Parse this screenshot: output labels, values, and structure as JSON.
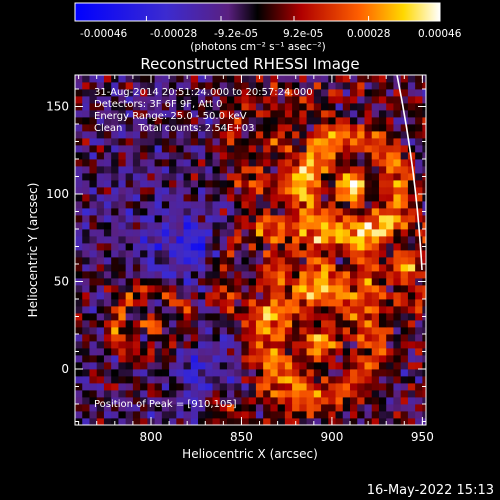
{
  "colorbar": {
    "ticks": [
      "-0.00046",
      "-0.00028",
      "-9.2e-05",
      "9.2e-05",
      "0.00028",
      "0.00046"
    ],
    "tick_values": [
      -0.00046,
      -0.00028,
      -9.2e-05,
      9.2e-05,
      0.00028,
      0.00046
    ],
    "unit_label": "(photons cm⁻² s⁻¹ asec⁻²)",
    "range": [
      -0.00046,
      0.00046
    ],
    "colormap": "blue-purple-black-red-orange-yellow-white"
  },
  "title": "Reconstructed RHESSI Image",
  "annotation": {
    "line1": "31-Aug-2014 20:51:24.000 to 20:57:24.000",
    "line2": "Detectors: 3F 6F 9F, Att 0",
    "line3": "Energy Range: 25.0 - 50.0 keV",
    "line4": "Clean     Total counts: 2.54E+03",
    "peak": "Position of Peak = [910,105]"
  },
  "footer": {
    "timestamp": "16-May-2022 15:13"
  },
  "colors": {
    "background": "#000000",
    "limb": "#ffffff",
    "text": "#ffffff"
  },
  "chart_data": {
    "type": "heatmap",
    "title": "Reconstructed RHESSI Image",
    "xlabel": "Heliocentric X (arcsec)",
    "ylabel": "Heliocentric Y (arcsec)",
    "xlim": [
      758,
      952
    ],
    "ylim": [
      -32,
      168
    ],
    "xticks": [
      800,
      850,
      900,
      950
    ],
    "yticks": [
      0,
      50,
      100,
      150
    ],
    "grid": false,
    "peak": [
      910,
      105
    ],
    "pixel_size_arcsec": 4,
    "sources": [
      {
        "x": 910,
        "y": 105,
        "amp": 1.0,
        "sigma": 14,
        "ring": 0.9
      },
      {
        "x": 893,
        "y": 15,
        "amp": 0.8,
        "sigma": 16,
        "ring": 0.8
      },
      {
        "x": 800,
        "y": 26,
        "amp": 0.75,
        "sigma": 10,
        "ring": 1.0
      },
      {
        "x": 865,
        "y": 55,
        "amp": 0.55,
        "sigma": 14,
        "ring": 0.8
      },
      {
        "x": 940,
        "y": 60,
        "amp": 0.6,
        "sigma": 12,
        "ring": 0.7
      },
      {
        "x": 870,
        "y": 130,
        "amp": 0.45,
        "sigma": 14,
        "ring": 0.8
      },
      {
        "x": 860,
        "y": -15,
        "amp": 0.4,
        "sigma": 12,
        "ring": 0.6
      }
    ],
    "negative_regions": [
      {
        "x": 830,
        "y": 5,
        "amp": 0.5,
        "sigma": 16
      },
      {
        "x": 820,
        "y": 70,
        "amp": 0.45,
        "sigma": 18
      }
    ]
  }
}
